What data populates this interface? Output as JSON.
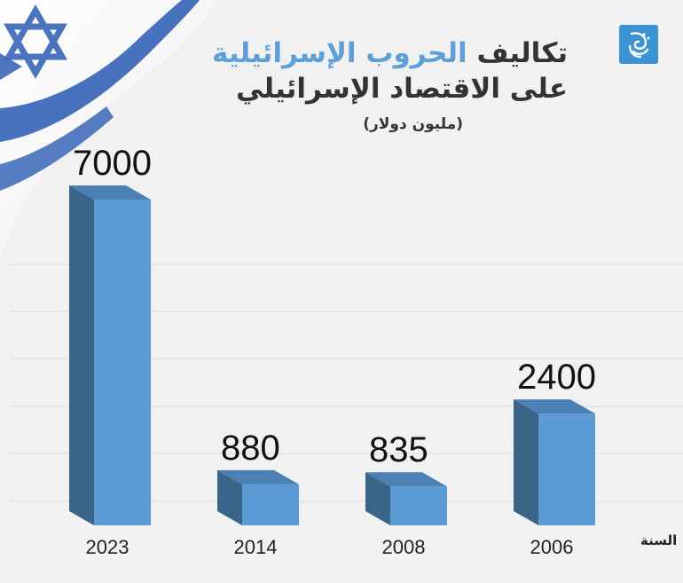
{
  "header": {
    "title_prefix": "تكاليف",
    "title_highlight": "الحروب الإسرائيلية",
    "title_line2": "على الاقتصاد الإسرائيلي",
    "subtitle": "(مليون دولار)"
  },
  "colors": {
    "bar_front": "#5b9bd5",
    "bar_side": "#3b6489",
    "bar_top": "#4a80b4",
    "highlight": "#5e9fd8",
    "logo_bg": "#3d93d2",
    "flag_blue": "#3a66b8"
  },
  "icons": {
    "logo": "aljazeera-logo",
    "flag": "israel-flag"
  },
  "axis": {
    "x_title": "السنة"
  },
  "chart_data": {
    "type": "bar",
    "categories": [
      "2023",
      "2014",
      "2008",
      "2006"
    ],
    "values": [
      7000,
      880,
      835,
      2400
    ],
    "title": "تكاليف الحروب الإسرائيلية على الاقتصاد الإسرائيلي",
    "subtitle": "(مليون دولار)",
    "xlabel": "السنة",
    "ylabel": "",
    "ylim": [
      0,
      7000
    ],
    "grid": true,
    "bar_style": "3d"
  }
}
